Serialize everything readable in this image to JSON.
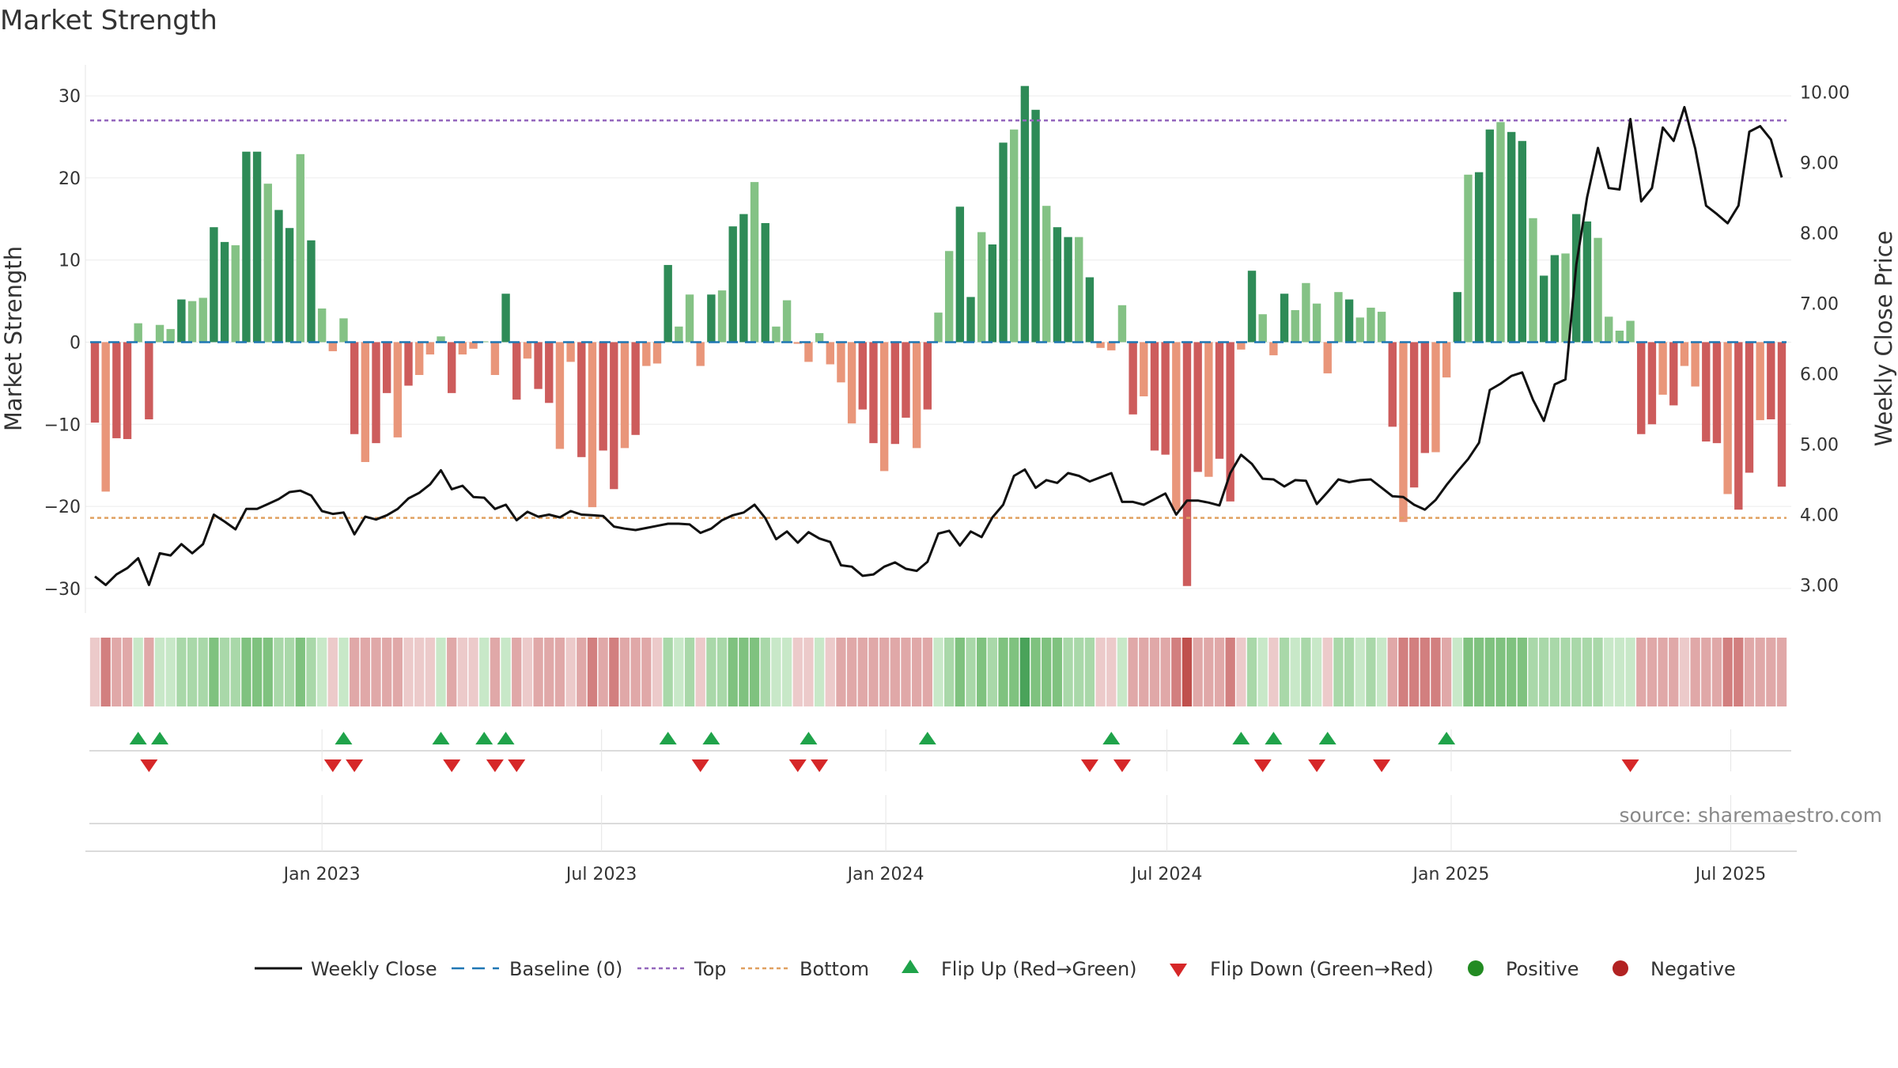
{
  "chart_data": {
    "type": "bar",
    "title": "Market Strength",
    "ylabel": "Market Strength",
    "y2label": "Weekly Close Price",
    "ylim": [
      -33,
      33
    ],
    "y2lim": [
      2.6,
      10.3
    ],
    "y_ticks": [
      30,
      20,
      10,
      0,
      -10,
      -20,
      -30
    ],
    "y_tick_labels": [
      "30",
      "20",
      "10",
      "0",
      "−10",
      "−20",
      "−30"
    ],
    "y2_ticks": [
      10,
      9,
      8,
      7,
      6,
      5,
      4,
      3
    ],
    "y2_tick_labels": [
      "10.00",
      "9.00",
      "8.00",
      "7.00",
      "6.00",
      "5.00",
      "4.00",
      "3.00"
    ],
    "x_ticks": [
      "2023-01-01",
      "2023-07-01",
      "2024-01-01",
      "2024-07-01",
      "2025-01-01",
      "2025-07-01"
    ],
    "x_tick_labels": [
      "Jan 2023",
      "Jul 2023",
      "Jan 2024",
      "Jul 2024",
      "Jan 2025",
      "Jul 2025"
    ],
    "top_level": 27,
    "bottom_level": -21.4,
    "baseline": 0,
    "source_label": "source: sharemaestro.com",
    "colors": {
      "pos_strong": "#2e8b57",
      "pos_light": "#84c285",
      "neg_strong": "#cd5c5c",
      "neg_light": "#e9967a",
      "line": "#111111",
      "baseline": "#1f77b4",
      "top": "#9467bd",
      "bottom": "#e0a060",
      "flip_up": "#1fa34a",
      "flip_down": "#d62728",
      "positive": "#228b22",
      "negative": "#b22222"
    },
    "start_date": "2022-08-07",
    "strength": [
      -9.8,
      -18.2,
      -11.7,
      -11.8,
      2.3,
      -9.4,
      2.1,
      1.6,
      5.2,
      5.0,
      5.4,
      14.0,
      12.2,
      11.8,
      23.2,
      23.2,
      19.3,
      16.1,
      13.9,
      22.9,
      12.4,
      4.1,
      -1.1,
      2.9,
      -11.2,
      -14.6,
      -12.3,
      -6.2,
      -11.6,
      -5.3,
      -4.0,
      -1.5,
      0.7,
      -6.2,
      -1.5,
      -0.8,
      0.1,
      -4.0,
      5.9,
      -7.0,
      -2.0,
      -5.7,
      -7.4,
      -13.0,
      -2.4,
      -14.0,
      -20.1,
      -13.2,
      -17.9,
      -12.9,
      -11.3,
      -2.9,
      -2.6,
      9.4,
      1.9,
      5.8,
      -2.9,
      5.8,
      6.3,
      14.1,
      15.6,
      19.5,
      14.5,
      1.9,
      5.1,
      -0.2,
      -2.4,
      1.1,
      -2.7,
      -4.9,
      -9.9,
      -8.2,
      -12.3,
      -15.7,
      -12.4,
      -9.2,
      -12.9,
      -8.2,
      3.6,
      11.1,
      16.5,
      5.5,
      13.4,
      11.9,
      24.3,
      25.9,
      31.2,
      28.3,
      16.6,
      14.0,
      12.8,
      12.8,
      7.9,
      -0.7,
      -1.0,
      4.5,
      -8.8,
      -6.6,
      -13.2,
      -13.7,
      -20.5,
      -29.7,
      -15.8,
      -16.4,
      -14.2,
      -19.4,
      -0.9,
      8.7,
      3.4,
      -1.6,
      5.9,
      3.9,
      7.2,
      4.7,
      -3.8,
      6.1,
      5.2,
      3.0,
      4.2,
      3.7,
      -10.3,
      -21.9,
      -17.7,
      -13.5,
      -13.4,
      -4.3,
      6.1,
      20.4,
      20.7,
      25.9,
      26.8,
      25.6,
      24.5,
      15.1,
      8.1,
      10.6,
      10.8,
      15.6,
      14.7,
      12.7,
      3.1,
      1.4,
      2.6,
      -11.2,
      -10.0,
      -6.4,
      -7.7,
      -2.9,
      -5.4,
      -12.1,
      -12.3,
      -18.5,
      -20.4,
      -15.9,
      -9.5,
      -9.4,
      -17.6
    ],
    "close": [
      3.12,
      3.0,
      3.15,
      3.24,
      3.38,
      3.0,
      3.45,
      3.42,
      3.58,
      3.45,
      3.58,
      4.0,
      3.9,
      3.79,
      4.08,
      4.08,
      4.15,
      4.22,
      4.32,
      4.34,
      4.27,
      4.05,
      4.01,
      4.03,
      3.72,
      3.97,
      3.93,
      3.99,
      4.08,
      4.23,
      4.31,
      4.43,
      4.63,
      4.36,
      4.41,
      4.25,
      4.24,
      4.08,
      4.14,
      3.92,
      4.04,
      3.97,
      4.0,
      3.96,
      4.05,
      4.0,
      3.99,
      3.98,
      3.83,
      3.8,
      3.78,
      3.81,
      3.84,
      3.87,
      3.87,
      3.86,
      3.74,
      3.8,
      3.92,
      3.99,
      4.03,
      4.14,
      3.95,
      3.65,
      3.76,
      3.6,
      3.75,
      3.66,
      3.61,
      3.28,
      3.26,
      3.13,
      3.15,
      3.26,
      3.32,
      3.23,
      3.2,
      3.33,
      3.73,
      3.77,
      3.56,
      3.76,
      3.68,
      3.96,
      4.14,
      4.55,
      4.64,
      4.38,
      4.49,
      4.45,
      4.59,
      4.55,
      4.47,
      4.53,
      4.59,
      4.18,
      4.18,
      4.14,
      4.22,
      4.3,
      4.0,
      4.2,
      4.2,
      4.17,
      4.13,
      4.59,
      4.85,
      4.72,
      4.51,
      4.5,
      4.4,
      4.49,
      4.48,
      4.15,
      4.32,
      4.5,
      4.46,
      4.49,
      4.5,
      4.38,
      4.26,
      4.25,
      4.14,
      4.07,
      4.21,
      4.42,
      4.61,
      4.79,
      5.02,
      5.77,
      5.86,
      5.97,
      6.02,
      5.63,
      5.33,
      5.85,
      5.92,
      7.55,
      8.51,
      9.21,
      8.64,
      8.62,
      9.62,
      8.45,
      8.64,
      9.5,
      9.31,
      9.79,
      9.2,
      8.39,
      8.27,
      8.14,
      8.39,
      9.44,
      9.52,
      9.33,
      8.79
    ],
    "strip_shade": [
      -1,
      -3,
      -2,
      -2,
      1,
      -2,
      1,
      1,
      2,
      2,
      2,
      3,
      2,
      2,
      3,
      3,
      3,
      2,
      2,
      3,
      2,
      1,
      -1,
      1,
      -2,
      -2,
      -2,
      -2,
      -2,
      -1,
      -1,
      -1,
      1,
      -2,
      -1,
      -1,
      1,
      -2,
      1,
      -2,
      -1,
      -2,
      -2,
      -2,
      -1,
      -2,
      -3,
      -2,
      -3,
      -2,
      -2,
      -2,
      -1,
      2,
      1,
      2,
      -1,
      2,
      2,
      3,
      3,
      3,
      2,
      1,
      1,
      -1,
      -1,
      1,
      -1,
      -2,
      -2,
      -2,
      -2,
      -2,
      -2,
      -2,
      -2,
      -2,
      1,
      2,
      3,
      2,
      3,
      2,
      3,
      3,
      4,
      3,
      3,
      3,
      2,
      2,
      2,
      -1,
      -1,
      1,
      -2,
      -2,
      -2,
      -2,
      -3,
      -4,
      -2,
      -2,
      -2,
      -3,
      -1,
      2,
      1,
      -1,
      2,
      1,
      2,
      1,
      -1,
      2,
      2,
      1,
      2,
      1,
      -2,
      -3,
      -3,
      -3,
      -3,
      -2,
      1,
      3,
      3,
      3,
      3,
      3,
      3,
      2,
      2,
      2,
      2,
      2,
      2,
      2,
      1,
      1,
      1,
      -2,
      -2,
      -2,
      -2,
      -1,
      -2,
      -2,
      -2,
      -3,
      -3,
      -2,
      -2,
      -2,
      -2
    ],
    "flip_up_weeks": [
      4,
      6,
      23,
      32,
      36,
      38,
      53,
      57,
      66,
      77,
      94,
      106,
      109,
      114,
      125
    ],
    "flip_down_weeks": [
      5,
      22,
      24,
      33,
      37,
      39,
      56,
      65,
      67,
      92,
      95,
      108,
      113,
      119,
      142
    ],
    "legend": [
      {
        "label": "Weekly Close",
        "kind": "line"
      },
      {
        "label": "Baseline (0)",
        "kind": "dash"
      },
      {
        "label": "Top",
        "kind": "dotted-top"
      },
      {
        "label": "Bottom",
        "kind": "dotted-bottom"
      },
      {
        "label": "Flip Up (Red→Green)",
        "kind": "tri-up"
      },
      {
        "label": "Flip Down (Green→Red)",
        "kind": "tri-down"
      },
      {
        "label": "Positive",
        "kind": "dot-pos"
      },
      {
        "label": "Negative",
        "kind": "dot-neg"
      }
    ]
  }
}
